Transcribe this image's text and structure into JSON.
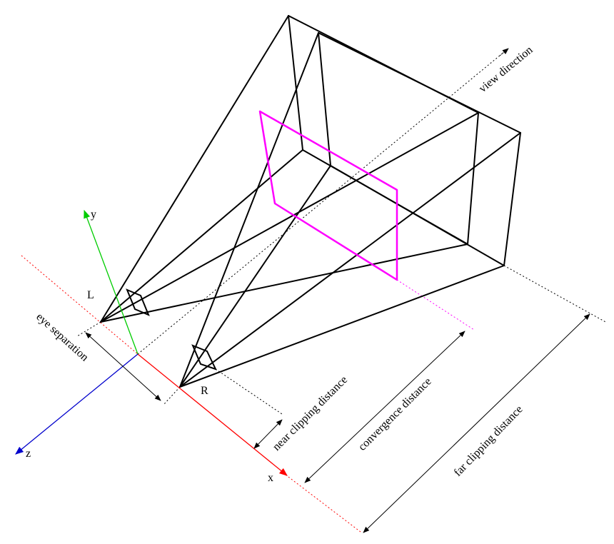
{
  "labels": {
    "left_eye": "L",
    "right_eye": "R",
    "view_direction": "view direction",
    "eye_separation": "eye separation",
    "near_clipping_distance": "near clipping distance",
    "convergence_distance": "convergence distance",
    "far_clipping_distance": "far clipping distance"
  },
  "axes": {
    "x": {
      "label": "x",
      "color": "#ff0000"
    },
    "y": {
      "label": "y",
      "color": "#00cc00"
    },
    "z": {
      "label": "z",
      "color": "#0000cc"
    }
  },
  "colors": {
    "frustum": "#000000",
    "convergence_plane": "#ff00ff",
    "dimension_lines": "#000000"
  }
}
